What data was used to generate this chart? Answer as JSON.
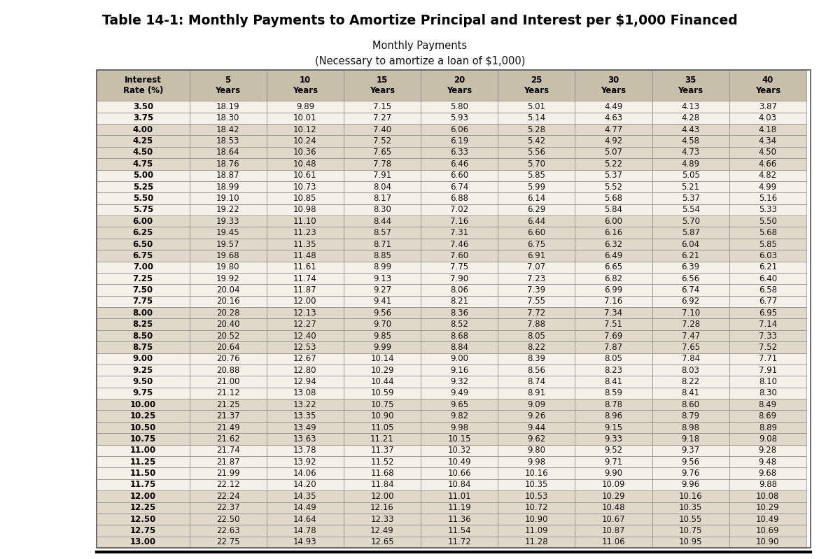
{
  "title": "Table 14-1: Monthly Payments to Amortize Principal and Interest per $1,000 Financed",
  "subtitle1": "Monthly Payments",
  "subtitle2": "(Necessary to amortize a loan of $1,000)",
  "interest_rates": [
    "3.50",
    "3.75",
    "4.00",
    "4.25",
    "4.50",
    "4.75",
    "5.00",
    "5.25",
    "5.50",
    "5.75",
    "6.00",
    "6.25",
    "6.50",
    "6.75",
    "7.00",
    "7.25",
    "7.50",
    "7.75",
    "8.00",
    "8.25",
    "8.50",
    "8.75",
    "9.00",
    "9.25",
    "9.50",
    "9.75",
    "10.00",
    "10.25",
    "10.50",
    "10.75",
    "11.00",
    "11.25",
    "11.50",
    "11.75",
    "12.00",
    "12.25",
    "12.50",
    "12.75",
    "13.00"
  ],
  "data": {
    "5yr": [
      18.19,
      18.3,
      18.42,
      18.53,
      18.64,
      18.76,
      18.87,
      18.99,
      19.1,
      19.22,
      19.33,
      19.45,
      19.57,
      19.68,
      19.8,
      19.92,
      20.04,
      20.16,
      20.28,
      20.4,
      20.52,
      20.64,
      20.76,
      20.88,
      21.0,
      21.12,
      21.25,
      21.37,
      21.49,
      21.62,
      21.74,
      21.87,
      21.99,
      22.12,
      22.24,
      22.37,
      22.5,
      22.63,
      22.75
    ],
    "10yr": [
      9.89,
      10.01,
      10.12,
      10.24,
      10.36,
      10.48,
      10.61,
      10.73,
      10.85,
      10.98,
      11.1,
      11.23,
      11.35,
      11.48,
      11.61,
      11.74,
      11.87,
      12.0,
      12.13,
      12.27,
      12.4,
      12.53,
      12.67,
      12.8,
      12.94,
      13.08,
      13.22,
      13.35,
      13.49,
      13.63,
      13.78,
      13.92,
      14.06,
      14.2,
      14.35,
      14.49,
      14.64,
      14.78,
      14.93
    ],
    "15yr": [
      7.15,
      7.27,
      7.4,
      7.52,
      7.65,
      7.78,
      7.91,
      8.04,
      8.17,
      8.3,
      8.44,
      8.57,
      8.71,
      8.85,
      8.99,
      9.13,
      9.27,
      9.41,
      9.56,
      9.7,
      9.85,
      9.99,
      10.14,
      10.29,
      10.44,
      10.59,
      10.75,
      10.9,
      11.05,
      11.21,
      11.37,
      11.52,
      11.68,
      11.84,
      12.0,
      12.16,
      12.33,
      12.49,
      12.65
    ],
    "20yr": [
      5.8,
      5.93,
      6.06,
      6.19,
      6.33,
      6.46,
      6.6,
      6.74,
      6.88,
      7.02,
      7.16,
      7.31,
      7.46,
      7.6,
      7.75,
      7.9,
      8.06,
      8.21,
      8.36,
      8.52,
      8.68,
      8.84,
      9.0,
      9.16,
      9.32,
      9.49,
      9.65,
      9.82,
      9.98,
      10.15,
      10.32,
      10.49,
      10.66,
      10.84,
      11.01,
      11.19,
      11.36,
      11.54,
      11.72
    ],
    "25yr": [
      5.01,
      5.14,
      5.28,
      5.42,
      5.56,
      5.7,
      5.85,
      5.99,
      6.14,
      6.29,
      6.44,
      6.6,
      6.75,
      6.91,
      7.07,
      7.23,
      7.39,
      7.55,
      7.72,
      7.88,
      8.05,
      8.22,
      8.39,
      8.56,
      8.74,
      8.91,
      9.09,
      9.26,
      9.44,
      9.62,
      9.8,
      9.98,
      10.16,
      10.35,
      10.53,
      10.72,
      10.9,
      11.09,
      11.28
    ],
    "30yr": [
      4.49,
      4.63,
      4.77,
      4.92,
      5.07,
      5.22,
      5.37,
      5.52,
      5.68,
      5.84,
      6.0,
      6.16,
      6.32,
      6.49,
      6.65,
      6.82,
      6.99,
      7.16,
      7.34,
      7.51,
      7.69,
      7.87,
      8.05,
      8.23,
      8.41,
      8.59,
      8.78,
      8.96,
      9.15,
      9.33,
      9.52,
      9.71,
      9.9,
      10.09,
      10.29,
      10.48,
      10.67,
      10.87,
      11.06
    ],
    "35yr": [
      4.13,
      4.28,
      4.43,
      4.58,
      4.73,
      4.89,
      5.05,
      5.21,
      5.37,
      5.54,
      5.7,
      5.87,
      6.04,
      6.21,
      6.39,
      6.56,
      6.74,
      6.92,
      7.1,
      7.28,
      7.47,
      7.65,
      7.84,
      8.03,
      8.22,
      8.41,
      8.6,
      8.79,
      8.98,
      9.18,
      9.37,
      9.56,
      9.76,
      9.96,
      10.16,
      10.35,
      10.55,
      10.75,
      10.95
    ],
    "40yr": [
      3.87,
      4.03,
      4.18,
      4.34,
      4.5,
      4.66,
      4.82,
      4.99,
      5.16,
      5.33,
      5.5,
      5.68,
      5.85,
      6.03,
      6.21,
      6.4,
      6.58,
      6.77,
      6.95,
      7.14,
      7.33,
      7.52,
      7.71,
      7.91,
      8.1,
      8.3,
      8.49,
      8.69,
      8.89,
      9.08,
      9.28,
      9.48,
      9.68,
      9.88,
      10.08,
      10.29,
      10.49,
      10.69,
      10.9
    ]
  },
  "bg_color": "#ffffff",
  "table_bg_light": "#f5f0e8",
  "table_bg_dark": "#e0d8c8",
  "header_bg": "#c8bfaa",
  "border_color": "#888888",
  "text_color": "#111111",
  "bold_color": "#000000",
  "title_fontsize": 13.5,
  "subtitle_fontsize": 10.5,
  "table_fontsize": 8.5,
  "header_fontsize": 8.5
}
